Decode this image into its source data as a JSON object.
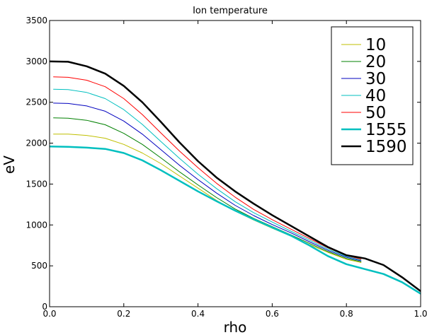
{
  "chart_data": {
    "type": "line",
    "title": "Ion temperature",
    "xlabel": "rho",
    "ylabel": "eV",
    "xlim": [
      0.0,
      1.0
    ],
    "ylim": [
      0,
      3500
    ],
    "xticks": [
      "0.0",
      "0.2",
      "0.4",
      "0.6",
      "0.8",
      "1.0"
    ],
    "yticks": [
      "0",
      "500",
      "1000",
      "1500",
      "2000",
      "2500",
      "3000",
      "3500"
    ],
    "grid": false,
    "legend_position": "top-right",
    "series": [
      {
        "name": "10",
        "color": "#bfbf00",
        "thick": false,
        "x": [
          0.01,
          0.05,
          0.1,
          0.15,
          0.2,
          0.25,
          0.3,
          0.35,
          0.4,
          0.45,
          0.5,
          0.55,
          0.6,
          0.65,
          0.7,
          0.75,
          0.8,
          0.84
        ],
        "y": [
          2110,
          2110,
          2095,
          2060,
          1985,
          1880,
          1750,
          1600,
          1450,
          1300,
          1170,
          1060,
          960,
          865,
          760,
          665,
          580,
          540
        ]
      },
      {
        "name": "20",
        "color": "#008000",
        "thick": false,
        "x": [
          0.01,
          0.05,
          0.1,
          0.15,
          0.2,
          0.25,
          0.3,
          0.35,
          0.4,
          0.45,
          0.5,
          0.55,
          0.6,
          0.65,
          0.7,
          0.75,
          0.8,
          0.84
        ],
        "y": [
          2310,
          2305,
          2280,
          2225,
          2120,
          1985,
          1820,
          1650,
          1490,
          1335,
          1195,
          1080,
          980,
          880,
          775,
          675,
          590,
          550
        ]
      },
      {
        "name": "30",
        "color": "#0000bf",
        "thick": false,
        "x": [
          0.01,
          0.05,
          0.1,
          0.15,
          0.2,
          0.25,
          0.3,
          0.35,
          0.4,
          0.45,
          0.5,
          0.55,
          0.6,
          0.65,
          0.7,
          0.75,
          0.8,
          0.84
        ],
        "y": [
          2490,
          2485,
          2455,
          2390,
          2270,
          2110,
          1920,
          1730,
          1555,
          1390,
          1240,
          1115,
          1005,
          905,
          795,
          690,
          605,
          560
        ]
      },
      {
        "name": "40",
        "color": "#00bfbf",
        "thick": false,
        "x": [
          0.01,
          0.05,
          0.1,
          0.15,
          0.2,
          0.25,
          0.3,
          0.35,
          0.4,
          0.45,
          0.5,
          0.55,
          0.6,
          0.65,
          0.7,
          0.75,
          0.8,
          0.84
        ],
        "y": [
          2660,
          2655,
          2620,
          2545,
          2410,
          2230,
          2020,
          1815,
          1620,
          1445,
          1285,
          1150,
          1035,
          925,
          815,
          705,
          615,
          570
        ]
      },
      {
        "name": "50",
        "color": "#ff0000",
        "thick": false,
        "x": [
          0.01,
          0.05,
          0.1,
          0.15,
          0.2,
          0.25,
          0.3,
          0.35,
          0.4,
          0.45,
          0.5,
          0.55,
          0.6,
          0.65,
          0.7,
          0.75,
          0.8,
          0.84
        ],
        "y": [
          2810,
          2805,
          2770,
          2690,
          2545,
          2350,
          2125,
          1905,
          1700,
          1510,
          1340,
          1190,
          1065,
          950,
          835,
          720,
          625,
          580
        ]
      },
      {
        "name": "1555",
        "color": "#00bfbf",
        "thick": true,
        "x": [
          0.0,
          0.05,
          0.1,
          0.15,
          0.2,
          0.25,
          0.3,
          0.35,
          0.4,
          0.45,
          0.5,
          0.55,
          0.6,
          0.65,
          0.7,
          0.75,
          0.8,
          0.85,
          0.9,
          0.95,
          1.0
        ],
        "y": [
          1960,
          1955,
          1945,
          1930,
          1880,
          1790,
          1670,
          1540,
          1410,
          1290,
          1175,
          1070,
          970,
          870,
          750,
          620,
          520,
          460,
          400,
          300,
          160
        ]
      },
      {
        "name": "1590",
        "color": "#000000",
        "thick": true,
        "x": [
          0.0,
          0.05,
          0.1,
          0.15,
          0.2,
          0.25,
          0.3,
          0.35,
          0.4,
          0.45,
          0.5,
          0.55,
          0.6,
          0.65,
          0.7,
          0.75,
          0.8,
          0.85,
          0.9,
          0.95,
          1.0
        ],
        "y": [
          3000,
          2995,
          2940,
          2850,
          2700,
          2500,
          2260,
          2010,
          1780,
          1580,
          1410,
          1260,
          1120,
          990,
          860,
          730,
          630,
          590,
          510,
          360,
          190
        ]
      }
    ]
  }
}
